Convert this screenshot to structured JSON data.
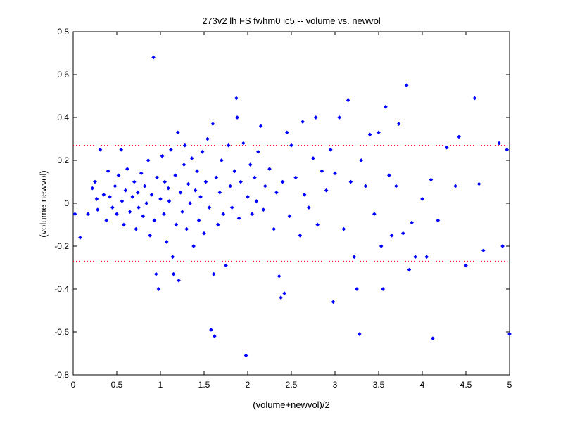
{
  "chart_data": {
    "type": "scatter",
    "title": "273v2 lh FS fwhm0 ic5 -- volume vs. newvol",
    "xlabel": "(volume+newvol)/2",
    "ylabel": "(volume-newvol)",
    "xlim": [
      0,
      5
    ],
    "ylim": [
      -0.8,
      0.8
    ],
    "x_ticks": [
      0,
      0.5,
      1,
      1.5,
      2,
      2.5,
      3,
      3.5,
      4,
      4.5,
      5
    ],
    "x_tick_labels": [
      "0",
      "0.5",
      "1",
      "1.5",
      "2",
      "2.5",
      "3",
      "3.5",
      "4",
      "4.5",
      "5"
    ],
    "y_ticks": [
      -0.8,
      -0.6,
      -0.4,
      -0.2,
      0,
      0.2,
      0.4,
      0.6,
      0.8
    ],
    "y_tick_labels": [
      "-0.8",
      "-0.6",
      "-0.4",
      "-0.2",
      "0",
      "0.2",
      "0.4",
      "0.6",
      "0.8"
    ],
    "grid": false,
    "marker_color": "#0000ff",
    "reference_line_color": "#ff0000",
    "reference_lines": [
      0.27,
      -0.27
    ],
    "series": [
      {
        "points": [
          [
            0.02,
            -0.05
          ],
          [
            0.08,
            -0.16
          ],
          [
            0.17,
            -0.05
          ],
          [
            0.22,
            0.07
          ],
          [
            0.25,
            0.1
          ],
          [
            0.27,
            0.02
          ],
          [
            0.28,
            -0.03
          ],
          [
            0.31,
            0.25
          ],
          [
            0.35,
            0.04
          ],
          [
            0.38,
            -0.08
          ],
          [
            0.4,
            0.15
          ],
          [
            0.42,
            0.03
          ],
          [
            0.45,
            -0.02
          ],
          [
            0.48,
            0.08
          ],
          [
            0.5,
            -0.05
          ],
          [
            0.52,
            0.13
          ],
          [
            0.55,
            0.25
          ],
          [
            0.56,
            0.01
          ],
          [
            0.58,
            -0.1
          ],
          [
            0.6,
            0.06
          ],
          [
            0.62,
            0.16
          ],
          [
            0.65,
            -0.04
          ],
          [
            0.68,
            0.03
          ],
          [
            0.7,
            0.1
          ],
          [
            0.72,
            -0.12
          ],
          [
            0.74,
            0.05
          ],
          [
            0.75,
            -0.02
          ],
          [
            0.78,
            0.14
          ],
          [
            0.8,
            -0.06
          ],
          [
            0.82,
            0.08
          ],
          [
            0.84,
            0.0
          ],
          [
            0.86,
            0.2
          ],
          [
            0.88,
            -0.15
          ],
          [
            0.9,
            0.04
          ],
          [
            0.92,
            0.68
          ],
          [
            0.93,
            -0.08
          ],
          [
            0.95,
            -0.33
          ],
          [
            0.96,
            0.12
          ],
          [
            0.98,
            -0.4
          ],
          [
            1.0,
            0.02
          ],
          [
            1.02,
            0.22
          ],
          [
            1.04,
            -0.05
          ],
          [
            1.05,
            0.1
          ],
          [
            1.07,
            -0.18
          ],
          [
            1.09,
            0.07
          ],
          [
            1.1,
            0.01
          ],
          [
            1.12,
            0.25
          ],
          [
            1.14,
            -0.25
          ],
          [
            1.15,
            -0.33
          ],
          [
            1.17,
            0.13
          ],
          [
            1.18,
            -0.1
          ],
          [
            1.2,
            0.33
          ],
          [
            1.21,
            -0.36
          ],
          [
            1.23,
            0.05
          ],
          [
            1.25,
            -0.04
          ],
          [
            1.27,
            0.18
          ],
          [
            1.28,
            0.27
          ],
          [
            1.3,
            -0.12
          ],
          [
            1.32,
            0.09
          ],
          [
            1.34,
            0.0
          ],
          [
            1.36,
            0.21
          ],
          [
            1.38,
            -0.2
          ],
          [
            1.4,
            0.06
          ],
          [
            1.42,
            0.15
          ],
          [
            1.44,
            -0.08
          ],
          [
            1.46,
            0.03
          ],
          [
            1.48,
            0.24
          ],
          [
            1.5,
            -0.14
          ],
          [
            1.52,
            0.1
          ],
          [
            1.54,
            0.3
          ],
          [
            1.56,
            -0.02
          ],
          [
            1.58,
            -0.59
          ],
          [
            1.6,
            0.37
          ],
          [
            1.61,
            -0.33
          ],
          [
            1.62,
            -0.62
          ],
          [
            1.64,
            0.12
          ],
          [
            1.66,
            -0.1
          ],
          [
            1.68,
            0.05
          ],
          [
            1.7,
            0.2
          ],
          [
            1.72,
            -0.05
          ],
          [
            1.75,
            -0.29
          ],
          [
            1.78,
            0.27
          ],
          [
            1.8,
            0.08
          ],
          [
            1.82,
            -0.02
          ],
          [
            1.85,
            0.15
          ],
          [
            1.87,
            0.49
          ],
          [
            1.88,
            0.4
          ],
          [
            1.9,
            -0.07
          ],
          [
            1.92,
            0.1
          ],
          [
            1.95,
            0.28
          ],
          [
            1.98,
            -0.71
          ],
          [
            2.0,
            0.03
          ],
          [
            2.03,
            0.18
          ],
          [
            2.05,
            -0.05
          ],
          [
            2.08,
            0.12
          ],
          [
            2.1,
            0.01
          ],
          [
            2.12,
            0.24
          ],
          [
            2.15,
            0.36
          ],
          [
            2.18,
            -0.03
          ],
          [
            2.2,
            0.08
          ],
          [
            2.25,
            0.16
          ],
          [
            2.3,
            -0.12
          ],
          [
            2.33,
            0.05
          ],
          [
            2.36,
            -0.34
          ],
          [
            2.38,
            -0.44
          ],
          [
            2.4,
            0.1
          ],
          [
            2.42,
            -0.42
          ],
          [
            2.45,
            0.33
          ],
          [
            2.48,
            -0.06
          ],
          [
            2.5,
            0.27
          ],
          [
            2.55,
            0.12
          ],
          [
            2.6,
            -0.15
          ],
          [
            2.63,
            0.38
          ],
          [
            2.65,
            0.04
          ],
          [
            2.7,
            -0.02
          ],
          [
            2.75,
            0.21
          ],
          [
            2.78,
            0.4
          ],
          [
            2.8,
            -0.1
          ],
          [
            2.85,
            0.15
          ],
          [
            2.9,
            0.06
          ],
          [
            2.95,
            0.25
          ],
          [
            2.98,
            -0.46
          ],
          [
            3.0,
            0.14
          ],
          [
            3.05,
            0.4
          ],
          [
            3.1,
            -0.12
          ],
          [
            3.15,
            0.48
          ],
          [
            3.18,
            0.1
          ],
          [
            3.22,
            -0.25
          ],
          [
            3.25,
            -0.4
          ],
          [
            3.28,
            -0.61
          ],
          [
            3.3,
            0.2
          ],
          [
            3.35,
            0.08
          ],
          [
            3.4,
            0.32
          ],
          [
            3.45,
            -0.05
          ],
          [
            3.5,
            0.33
          ],
          [
            3.53,
            -0.2
          ],
          [
            3.55,
            -0.4
          ],
          [
            3.58,
            0.45
          ],
          [
            3.62,
            0.13
          ],
          [
            3.65,
            -0.15
          ],
          [
            3.7,
            0.08
          ],
          [
            3.73,
            0.37
          ],
          [
            3.78,
            -0.14
          ],
          [
            3.82,
            0.55
          ],
          [
            3.85,
            -0.31
          ],
          [
            3.88,
            -0.09
          ],
          [
            3.92,
            -0.25
          ],
          [
            4.0,
            0.02
          ],
          [
            4.05,
            -0.25
          ],
          [
            4.1,
            0.11
          ],
          [
            4.12,
            -0.63
          ],
          [
            4.18,
            -0.08
          ],
          [
            4.28,
            0.26
          ],
          [
            4.38,
            0.08
          ],
          [
            4.42,
            0.31
          ],
          [
            4.5,
            -0.29
          ],
          [
            4.6,
            0.49
          ],
          [
            4.65,
            0.09
          ],
          [
            4.7,
            -0.22
          ],
          [
            4.88,
            0.28
          ],
          [
            4.92,
            -0.2
          ],
          [
            4.97,
            0.25
          ],
          [
            5.0,
            -0.61
          ]
        ]
      }
    ]
  }
}
